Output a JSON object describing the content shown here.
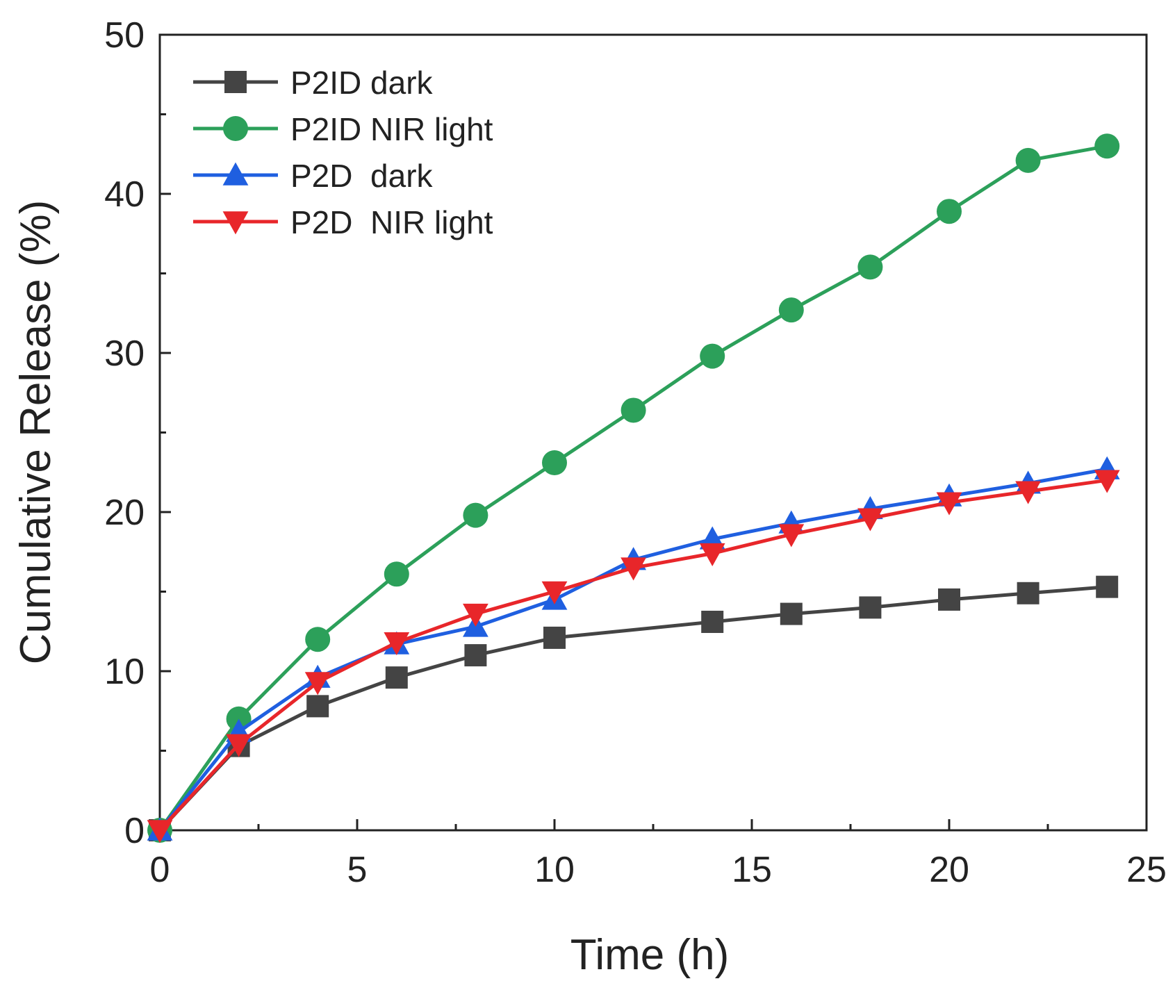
{
  "chart_data": {
    "type": "line",
    "title": "",
    "xlabel": "Time (h)",
    "ylabel": "Cumulative Release (%)",
    "xlim": [
      0,
      25
    ],
    "ylim": [
      0,
      50
    ],
    "xticks": [
      0,
      5,
      10,
      15,
      20,
      25
    ],
    "yticks": [
      0,
      10,
      20,
      30,
      40,
      50
    ],
    "grid": false,
    "legend_position": "top-left",
    "series": [
      {
        "name": "P2ID dark",
        "color": "#444444",
        "marker": "square",
        "x": [
          0,
          2,
          4,
          6,
          8,
          10,
          14,
          16,
          18,
          20,
          22,
          24
        ],
        "y": [
          0,
          5.3,
          7.8,
          9.6,
          11.0,
          12.1,
          13.1,
          13.6,
          14.0,
          14.5,
          14.9,
          15.3
        ]
      },
      {
        "name": "P2ID NIR light",
        "color": "#2ca05a",
        "marker": "circle",
        "x": [
          0,
          2,
          4,
          6,
          8,
          10,
          12,
          14,
          16,
          18,
          20,
          22,
          24
        ],
        "y": [
          0,
          7.0,
          12.0,
          16.1,
          19.8,
          23.1,
          26.4,
          29.8,
          32.7,
          35.4,
          38.9,
          42.1,
          43.0
        ]
      },
      {
        "name": "P2D  dark",
        "color": "#1f5fe0",
        "marker": "triangle-up",
        "x": [
          0,
          2,
          4,
          6,
          8,
          10,
          12,
          14,
          16,
          18,
          20,
          22,
          24
        ],
        "y": [
          0,
          6.2,
          9.6,
          11.7,
          12.8,
          14.5,
          17.0,
          18.3,
          19.3,
          20.2,
          21.0,
          21.8,
          22.7
        ]
      },
      {
        "name": "P2D  NIR light",
        "color": "#e8262a",
        "marker": "triangle-down",
        "x": [
          0,
          2,
          4,
          6,
          8,
          10,
          12,
          14,
          16,
          18,
          20,
          22,
          24
        ],
        "y": [
          0,
          5.4,
          9.3,
          11.8,
          13.6,
          15.0,
          16.5,
          17.4,
          18.6,
          19.6,
          20.6,
          21.3,
          22.0
        ]
      }
    ]
  }
}
